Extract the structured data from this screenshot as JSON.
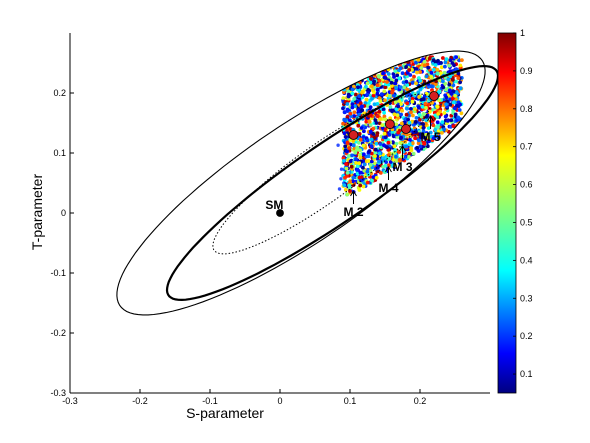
{
  "chart_data": {
    "type": "scatter",
    "xlabel": "S-parameter",
    "ylabel": "T-parameter",
    "xlim": [
      -0.3,
      0.3
    ],
    "ylim": [
      -0.3,
      0.3
    ],
    "x_ticks": [
      "-0.3",
      "-0.2",
      "-0.1",
      "0",
      "0.1",
      "0.2"
    ],
    "y_ticks": [
      "-0.3",
      "-0.2",
      "-0.1",
      "0",
      "0.1",
      "0.2"
    ],
    "colorbar": {
      "colormap": "jet",
      "range": [
        0.05,
        1
      ],
      "ticks": [
        "0.1",
        "0.2",
        "0.3",
        "0.4",
        "0.5",
        "0.6",
        "0.7",
        "0.8",
        "0.9",
        "1"
      ]
    },
    "ellipses": [
      {
        "style": "dotted",
        "center": [
          0.06,
          0.065
        ],
        "angle_deg": 40,
        "semi_major": 0.2,
        "semi_minor": 0.045
      },
      {
        "style": "thick",
        "center": [
          0.075,
          0.05
        ],
        "angle_deg": 39,
        "semi_major": 0.3,
        "semi_minor": 0.062
      },
      {
        "style": "thin",
        "center": [
          0.03,
          0.05
        ],
        "angle_deg": 39,
        "semi_major": 0.33,
        "semi_minor": 0.093
      }
    ],
    "points": [
      {
        "label": "SM",
        "x": 0.0,
        "y": 0.0,
        "color": "#000000"
      },
      {
        "label": "M 2",
        "x": 0.105,
        "y": 0.13,
        "color": "#d42020"
      },
      {
        "label": "M 4",
        "x": 0.157,
        "y": 0.148,
        "color": "#d42020"
      },
      {
        "label": "M 3",
        "x": 0.18,
        "y": 0.14,
        "color": "#d42020"
      },
      {
        "label": "M 5",
        "x": 0.22,
        "y": 0.195,
        "color": "#d42020"
      }
    ],
    "annotations": [
      {
        "text": "SM",
        "x": -0.008,
        "y": 0.0
      },
      {
        "text": "M 2",
        "x": 0.105,
        "y": -0.005
      },
      {
        "text": "M 4",
        "x": 0.155,
        "y": 0.035
      },
      {
        "text": "M 3",
        "x": 0.175,
        "y": 0.07
      },
      {
        "text": "M 5",
        "x": 0.215,
        "y": 0.12
      }
    ]
  }
}
